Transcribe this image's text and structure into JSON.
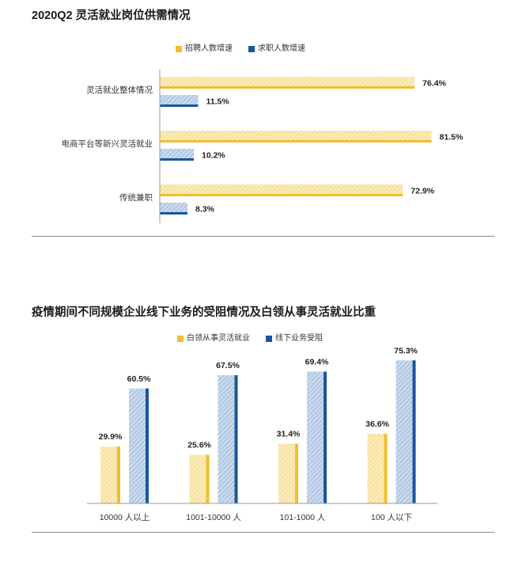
{
  "chart_data": [
    {
      "type": "bar",
      "orientation": "horizontal",
      "title": "2020Q2 灵活就业岗位供需情况",
      "categories": [
        "灵活就业整体情况",
        "电商平台等新兴灵活就业",
        "传统兼职"
      ],
      "series": [
        {
          "name": "招聘人数增速",
          "values": [
            76.4,
            81.5,
            72.9
          ],
          "color": "#EFBF2C",
          "hatch_color": "#F8E29E"
        },
        {
          "name": "求职人数增速",
          "values": [
            11.5,
            10.2,
            8.3
          ],
          "color": "#1B5699",
          "hatch_color": "#B2C9E5"
        }
      ],
      "value_suffix": "%",
      "xlim": [
        0,
        100
      ],
      "legend": "top-center",
      "grid": false
    },
    {
      "type": "bar",
      "orientation": "vertical",
      "title": "疫情期间不同规模企业线下业务的受阻情况及白领从事灵活就业比重",
      "categories": [
        "10000 人以上",
        "1001-10000 人",
        "101-1000 人",
        "100 人以下"
      ],
      "series": [
        {
          "name": "白领从事灵活就业",
          "values": [
            29.9,
            25.6,
            31.4,
            36.6
          ],
          "color": "#EFBF2C",
          "hatch_color": "#F8E29E"
        },
        {
          "name": "线下业务受阻",
          "values": [
            60.5,
            67.5,
            69.4,
            75.3
          ],
          "color": "#1B5699",
          "hatch_color": "#B2C9E5"
        }
      ],
      "value_suffix": "%",
      "ylim": [
        0,
        100
      ],
      "legend": "top-center",
      "grid": false
    }
  ]
}
